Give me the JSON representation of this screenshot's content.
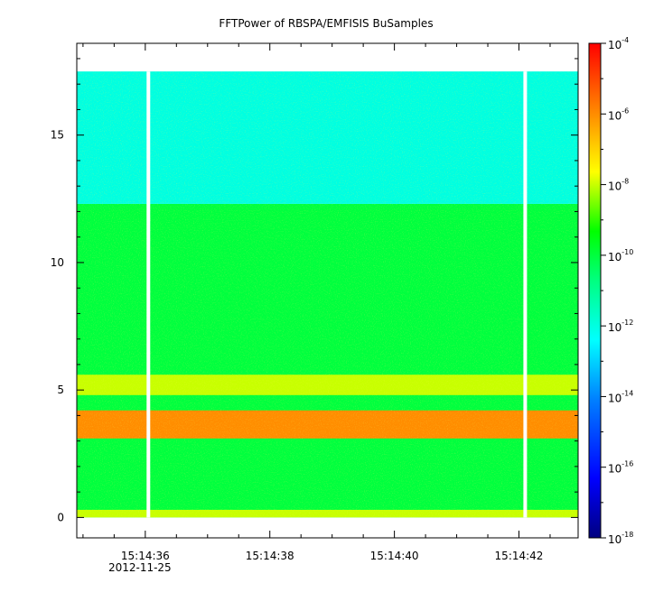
{
  "chart_data": {
    "type": "heatmap",
    "title": "FFTPower of RBSPA/EMFISIS  BuSamples",
    "xlabel": "",
    "ylabel": "",
    "x_axis": {
      "ticks": [
        {
          "label": "15:14:36",
          "seconds": 36.0
        },
        {
          "label": "15:14:38",
          "seconds": 38.0
        },
        {
          "label": "15:14:40",
          "seconds": 40.0
        },
        {
          "label": "15:14:42",
          "seconds": 42.0
        }
      ],
      "date_label": "2012-11-25",
      "range_seconds": [
        34.9,
        42.95
      ]
    },
    "y_axis": {
      "ticks": [
        "0",
        "5",
        "10",
        "15"
      ],
      "range": [
        -0.8,
        18.6
      ],
      "data_extent": [
        0,
        17.5
      ]
    },
    "colorbar": {
      "scale": "log",
      "range": [
        1e-18,
        0.0001
      ],
      "tick_labels": [
        {
          "base": "10",
          "exp": "-4"
        },
        {
          "base": "10",
          "exp": "-6"
        },
        {
          "base": "10",
          "exp": "-8"
        },
        {
          "base": "10",
          "exp": "-10"
        },
        {
          "base": "10",
          "exp": "-12"
        },
        {
          "base": "10",
          "exp": "-14"
        },
        {
          "base": "10",
          "exp": "-16"
        },
        {
          "base": "10",
          "exp": "-18"
        }
      ]
    },
    "data_gaps_seconds": [
      36.05,
      42.1
    ],
    "spectral_bands": [
      {
        "y_range": [
          0,
          12.3
        ],
        "level": 1e-10
      },
      {
        "y_range": [
          12.3,
          17.5
        ],
        "level": 1e-12
      },
      {
        "y_range": [
          4.8,
          5.6
        ],
        "level": 1e-08
      },
      {
        "y_range": [
          3.1,
          4.2
        ],
        "level": 1e-06
      },
      {
        "y_range": [
          0,
          0.3
        ],
        "level": 1e-08
      }
    ]
  }
}
